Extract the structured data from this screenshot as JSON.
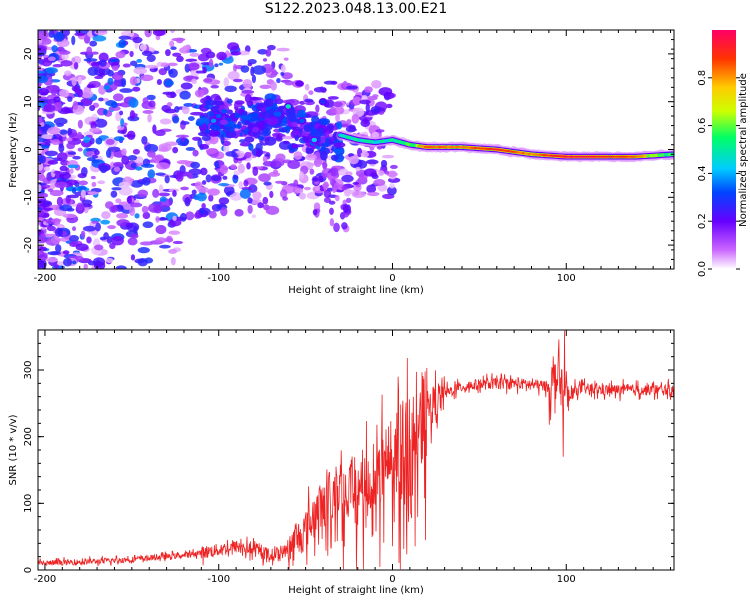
{
  "title": "S122.2023.048.13.00.E21",
  "chart_data": [
    {
      "type": "heatmap",
      "xlabel": "Height of straight line (km)",
      "ylabel": "Frequency (Hz)",
      "xlim": [
        -204,
        162
      ],
      "ylim": [
        -25,
        25
      ],
      "xticks": [
        -200,
        -100,
        0,
        100
      ],
      "yticks": [
        -20,
        -10,
        0,
        10,
        20
      ],
      "colorbar": {
        "label": "Normalized spectral amplitude",
        "range": [
          0,
          1
        ],
        "ticks": [
          "0.0",
          "0.2",
          "0.4",
          "0.6",
          "0.8"
        ],
        "colors": [
          "#ffffff",
          "#cc66ff",
          "#6600ff",
          "#0044ff",
          "#00ccff",
          "#00ff66",
          "#ccff00",
          "#ffcc00",
          "#ff3300",
          "#ff0066"
        ]
      },
      "ridge": {
        "description_points_x": [
          -30,
          -20,
          -10,
          0,
          10,
          20,
          40,
          60,
          80,
          100,
          120,
          140,
          162
        ],
        "freq_hz": [
          3,
          2,
          1.5,
          2,
          1,
          0.5,
          0.5,
          0,
          -1,
          -1.5,
          -1.5,
          -1.5,
          -1
        ],
        "amplitude": [
          0.5,
          0.6,
          0.55,
          0.6,
          0.7,
          0.85,
          0.8,
          0.9,
          0.8,
          0.95,
          0.9,
          0.85,
          0.6
        ]
      }
    },
    {
      "type": "line",
      "xlabel": "Height of straight line (km)",
      "ylabel": "SNR (10 * v/v)",
      "xlim": [
        -204,
        162
      ],
      "ylim": [
        0,
        360
      ],
      "xticks": [
        -200,
        -100,
        0,
        100
      ],
      "yticks": [
        0,
        100,
        200,
        300
      ],
      "color": "#ee2222",
      "x": [
        -204,
        -180,
        -160,
        -140,
        -120,
        -100,
        -90,
        -80,
        -70,
        -60,
        -50,
        -40,
        -30,
        -20,
        -10,
        0,
        10,
        20,
        30,
        40,
        50,
        60,
        70,
        80,
        90,
        95,
        100,
        105,
        110,
        120,
        140,
        162
      ],
      "y": [
        10,
        12,
        14,
        18,
        22,
        30,
        35,
        30,
        22,
        30,
        60,
        100,
        120,
        130,
        150,
        170,
        200,
        240,
        265,
        275,
        278,
        280,
        280,
        278,
        275,
        290,
        250,
        270,
        272,
        270,
        270,
        270
      ]
    }
  ]
}
